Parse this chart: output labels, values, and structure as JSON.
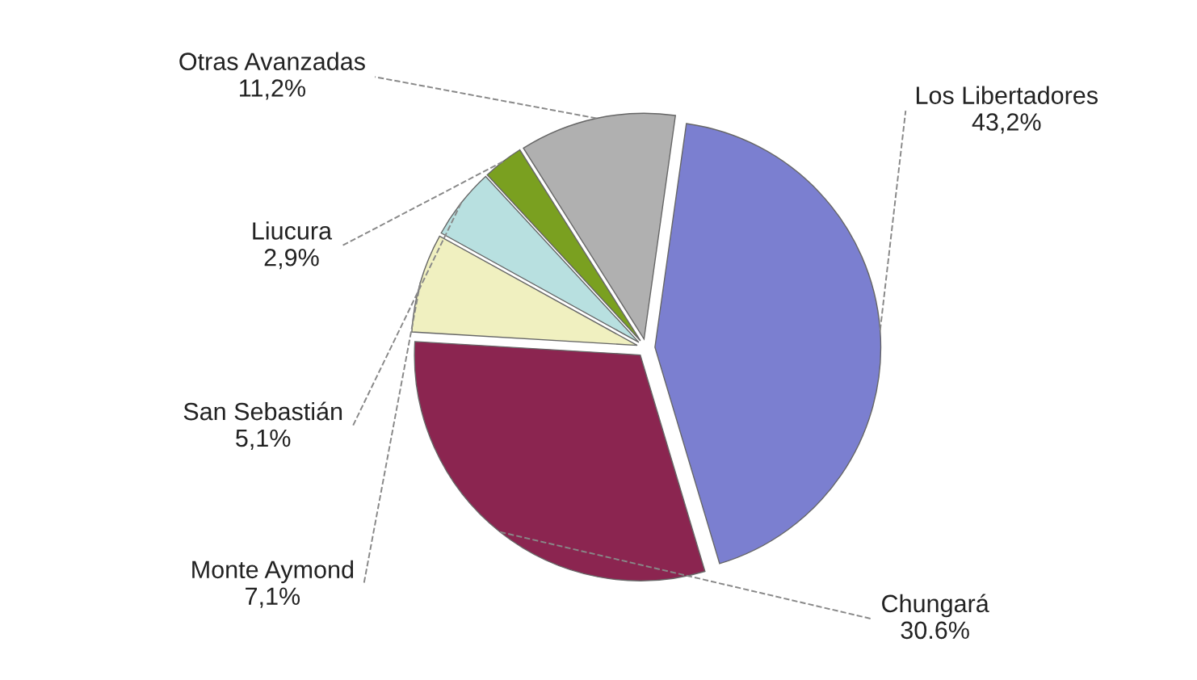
{
  "chart_data": {
    "type": "pie",
    "categories": [
      "Los Libertadores",
      "Chungará",
      "Monte Aymond",
      "San Sebastián",
      "Liucura",
      "Otras Avanzadas"
    ],
    "values": [
      43.2,
      30.6,
      7.1,
      5.1,
      2.9,
      11.2
    ],
    "value_labels": [
      "43,2%",
      "30.6%",
      "7,1%",
      "5,1%",
      "2,9%",
      "11,2%"
    ],
    "colors": [
      "#7b7fd0",
      "#8b2550",
      "#f0f0c0",
      "#b8e0e0",
      "#7aa020",
      "#b0b0b0"
    ],
    "legend": false
  }
}
